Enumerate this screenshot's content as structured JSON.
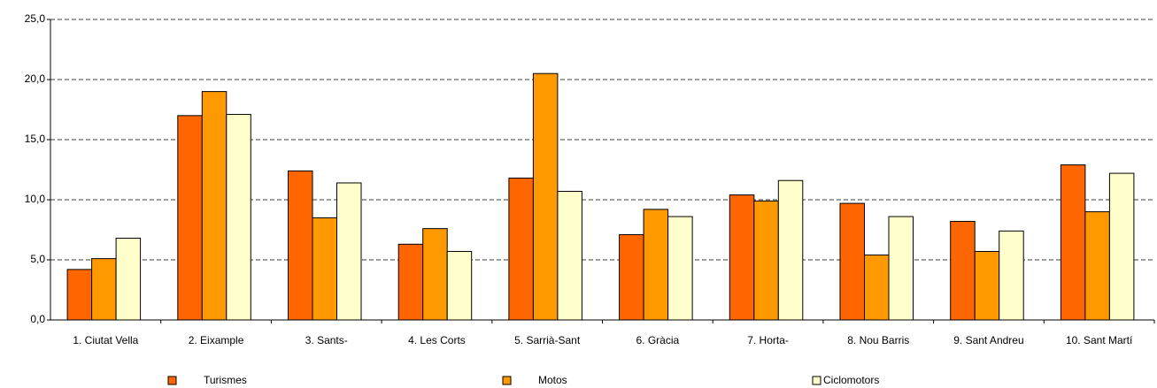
{
  "chart_data": {
    "type": "bar",
    "categories": [
      "1. Ciutat Vella",
      "2. Eixample",
      "3. Sants-",
      "4. Les Corts",
      "5. Sarrià-Sant",
      "6. Gràcia",
      "7. Horta-",
      "8. Nou Barris",
      "9. Sant Andreu",
      "10. Sant Martí"
    ],
    "series": [
      {
        "name": "Turismes",
        "color": "#ff6600",
        "values": [
          4.2,
          17.0,
          12.4,
          6.3,
          11.8,
          7.1,
          10.4,
          9.7,
          8.2,
          12.9
        ]
      },
      {
        "name": "Motos",
        "color": "#ff9900",
        "values": [
          5.1,
          19.0,
          8.5,
          7.6,
          20.5,
          9.2,
          9.9,
          5.4,
          5.7,
          9.0
        ]
      },
      {
        "name": "Ciclomotors",
        "color": "#ffffcc",
        "values": [
          6.8,
          17.1,
          11.4,
          5.7,
          10.7,
          8.6,
          11.6,
          8.6,
          7.4,
          12.2
        ]
      }
    ],
    "ylim": [
      0,
      25
    ],
    "yticks": [
      {
        "value": 0,
        "label": "0,0"
      },
      {
        "value": 5,
        "label": "5,0"
      },
      {
        "value": 10,
        "label": "10,0"
      },
      {
        "value": 15,
        "label": "15,0"
      },
      {
        "value": 20,
        "label": "20,0"
      },
      {
        "value": 25,
        "label": "25,0"
      }
    ],
    "grid": true,
    "legend": "bottom"
  }
}
